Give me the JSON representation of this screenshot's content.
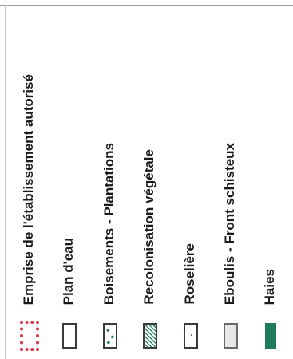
{
  "legend": {
    "items": [
      {
        "label": "Emprise de l'établissement autorisé",
        "symbol": "red-dotted-outline-icon",
        "color": "#d7374a"
      },
      {
        "label": "Plan d'eau",
        "symbol": "blue-line-box-icon",
        "color": "#4a6fb0"
      },
      {
        "label": "Boisements - Plantations",
        "symbol": "green-dots-box-icon",
        "color": "#1e7a54"
      },
      {
        "label": "Recolonisation végétale",
        "symbol": "green-hatch-box-icon",
        "color": "#2f8a6a"
      },
      {
        "label": "Roselière",
        "symbol": "blue-dot-box-icon",
        "color": "#4a6fb0"
      },
      {
        "label": "Eboulis - Front schisteux",
        "symbol": "grey-box-icon",
        "color": "#e6e6e6"
      },
      {
        "label": "Haies",
        "symbol": "green-fill-icon",
        "color": "#1f7a5e"
      }
    ]
  }
}
